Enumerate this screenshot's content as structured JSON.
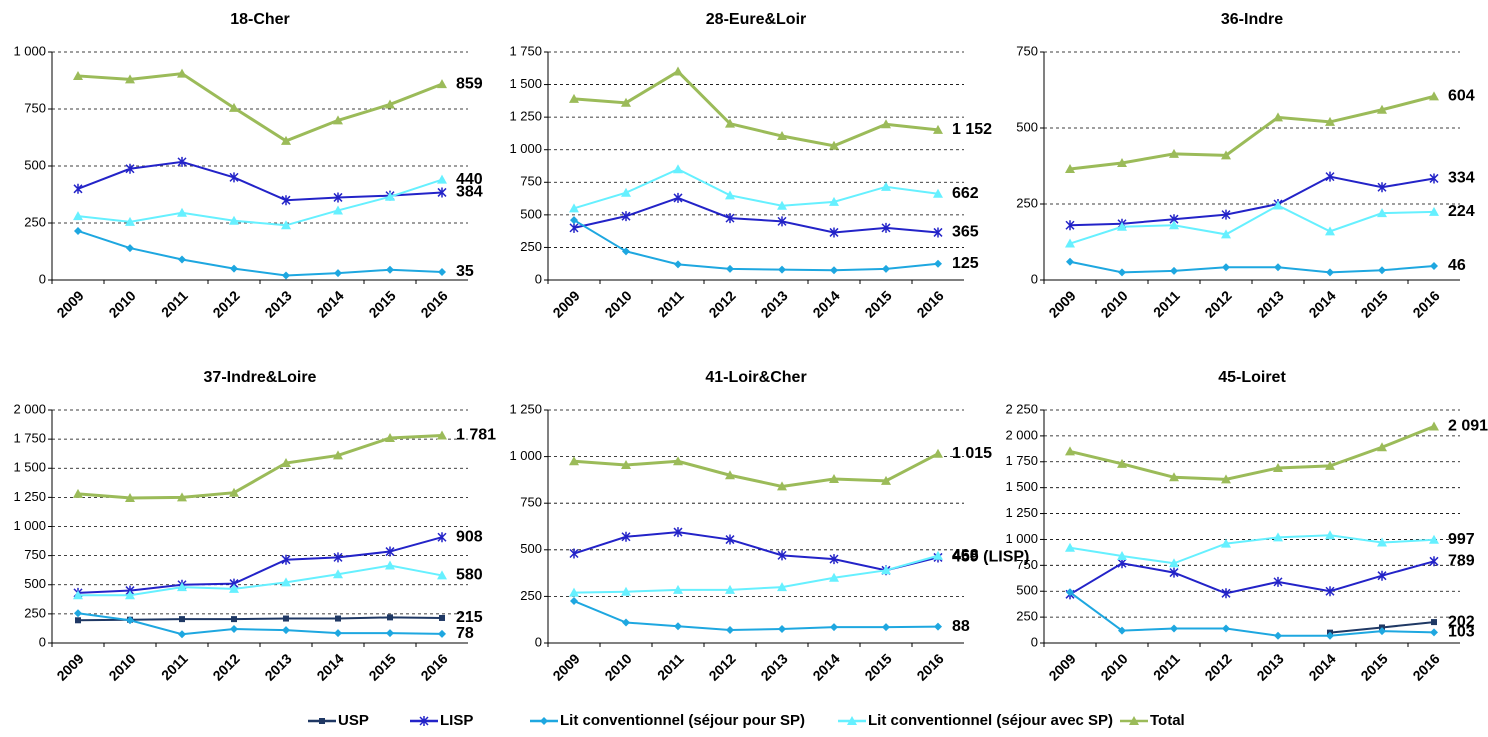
{
  "chart_data": [
    {
      "type": "line",
      "title": "18-Cher",
      "categories": [
        "2009",
        "2010",
        "2011",
        "2012",
        "2013",
        "2014",
        "2015",
        "2016"
      ],
      "ylim": [
        0,
        1000
      ],
      "yticks": [
        0,
        250,
        500,
        750,
        {
          "value": 1000,
          "label": "1 000"
        }
      ],
      "grid": true,
      "series": [
        {
          "name": "USP",
          "color": "#1f3864",
          "marker": "square",
          "values": [
            null,
            null,
            null,
            null,
            null,
            null,
            null,
            null
          ]
        },
        {
          "name": "LISP",
          "color": "#2323c8",
          "marker": "asterisk",
          "values": [
            400,
            488,
            518,
            450,
            350,
            362,
            370,
            384
          ]
        },
        {
          "name": "Lit conventionnel (séjour pour SP)",
          "color": "#1ea7e0",
          "marker": "diamond",
          "values": [
            215,
            140,
            90,
            50,
            20,
            30,
            45,
            35
          ]
        },
        {
          "name": "Lit conventionnel (séjour avec SP)",
          "color": "#66f0ff",
          "marker": "triangle",
          "values": [
            280,
            255,
            295,
            260,
            240,
            305,
            365,
            440
          ]
        },
        {
          "name": "Total",
          "color": "#9bbb59",
          "marker": "triangle",
          "values": [
            895,
            880,
            905,
            755,
            610,
            700,
            770,
            859
          ]
        }
      ]
    },
    {
      "type": "line",
      "title": "28-Eure&Loir",
      "categories": [
        "2009",
        "2010",
        "2011",
        "2012",
        "2013",
        "2014",
        "2015",
        "2016"
      ],
      "ylim": [
        0,
        1750
      ],
      "yticks": [
        0,
        250,
        500,
        750,
        {
          "value": 1000,
          "label": "1 000"
        },
        {
          "value": 1250,
          "label": "1 250"
        },
        {
          "value": 1500,
          "label": "1 500"
        },
        {
          "value": 1750,
          "label": "1 750"
        }
      ],
      "grid": true,
      "series": [
        {
          "name": "USP",
          "color": "#1f3864",
          "marker": "square",
          "values": [
            null,
            null,
            null,
            null,
            null,
            null,
            null,
            null
          ]
        },
        {
          "name": "LISP",
          "color": "#2323c8",
          "marker": "asterisk",
          "values": [
            400,
            490,
            630,
            475,
            450,
            365,
            400,
            365
          ]
        },
        {
          "name": "Lit conventionnel (séjour pour SP)",
          "color": "#1ea7e0",
          "marker": "diamond",
          "values": [
            460,
            220,
            120,
            85,
            80,
            75,
            85,
            125
          ]
        },
        {
          "name": "Lit conventionnel (séjour avec SP)",
          "color": "#66f0ff",
          "marker": "triangle",
          "values": [
            550,
            670,
            850,
            650,
            570,
            600,
            715,
            662
          ]
        },
        {
          "name": "Total",
          "color": "#9bbb59",
          "marker": "triangle",
          "values": [
            1390,
            1360,
            1600,
            1200,
            1105,
            1030,
            1195,
            1152
          ],
          "value_labels": [
            null,
            null,
            null,
            null,
            null,
            null,
            null,
            "1 152"
          ]
        }
      ]
    },
    {
      "type": "line",
      "title": "36-Indre",
      "categories": [
        "2009",
        "2010",
        "2011",
        "2012",
        "2013",
        "2014",
        "2015",
        "2016"
      ],
      "ylim": [
        0,
        750
      ],
      "yticks": [
        0,
        250,
        500,
        750
      ],
      "grid": true,
      "series": [
        {
          "name": "USP",
          "color": "#1f3864",
          "marker": "square",
          "values": [
            null,
            null,
            null,
            null,
            null,
            null,
            null,
            null
          ]
        },
        {
          "name": "LISP",
          "color": "#2323c8",
          "marker": "asterisk",
          "values": [
            180,
            185,
            200,
            215,
            250,
            340,
            305,
            334
          ]
        },
        {
          "name": "Lit conventionnel (séjour pour SP)",
          "color": "#1ea7e0",
          "marker": "diamond",
          "values": [
            60,
            25,
            30,
            42,
            42,
            25,
            32,
            46
          ]
        },
        {
          "name": "Lit conventionnel (séjour avec SP)",
          "color": "#66f0ff",
          "marker": "triangle",
          "values": [
            120,
            175,
            180,
            150,
            245,
            160,
            220,
            224
          ]
        },
        {
          "name": "Total",
          "color": "#9bbb59",
          "marker": "triangle",
          "values": [
            365,
            385,
            415,
            410,
            535,
            520,
            560,
            604
          ]
        }
      ]
    },
    {
      "type": "line",
      "title": "37-Indre&Loire",
      "categories": [
        "2009",
        "2010",
        "2011",
        "2012",
        "2013",
        "2014",
        "2015",
        "2016"
      ],
      "ylim": [
        0,
        2000
      ],
      "yticks": [
        0,
        250,
        500,
        750,
        {
          "value": 1000,
          "label": "1 000"
        },
        {
          "value": 1250,
          "label": "1 250"
        },
        {
          "value": 1500,
          "label": "1 500"
        },
        {
          "value": 1750,
          "label": "1 750"
        },
        {
          "value": 2000,
          "label": "2 000"
        }
      ],
      "grid": true,
      "series": [
        {
          "name": "USP",
          "color": "#1f3864",
          "marker": "square",
          "values": [
            195,
            200,
            205,
            205,
            210,
            210,
            220,
            215
          ]
        },
        {
          "name": "LISP",
          "color": "#2323c8",
          "marker": "asterisk",
          "values": [
            430,
            450,
            500,
            510,
            715,
            735,
            785,
            908
          ]
        },
        {
          "name": "Lit conventionnel (séjour pour SP)",
          "color": "#1ea7e0",
          "marker": "diamond",
          "values": [
            255,
            195,
            75,
            120,
            110,
            85,
            85,
            78
          ]
        },
        {
          "name": "Lit conventionnel (séjour avec SP)",
          "color": "#66f0ff",
          "marker": "triangle",
          "values": [
            410,
            410,
            480,
            465,
            520,
            590,
            665,
            580
          ]
        },
        {
          "name": "Total",
          "color": "#9bbb59",
          "marker": "triangle",
          "values": [
            1280,
            1245,
            1250,
            1290,
            1545,
            1610,
            1760,
            1781
          ],
          "value_labels": [
            null,
            null,
            null,
            null,
            null,
            null,
            null,
            "1 781"
          ]
        }
      ]
    },
    {
      "type": "line",
      "title": "41-Loir&Cher",
      "categories": [
        "2009",
        "2010",
        "2011",
        "2012",
        "2013",
        "2014",
        "2015",
        "2016"
      ],
      "ylim": [
        0,
        1250
      ],
      "yticks": [
        0,
        250,
        500,
        750,
        {
          "value": 1000,
          "label": "1 000"
        },
        {
          "value": 1250,
          "label": "1 250"
        }
      ],
      "grid": true,
      "series": [
        {
          "name": "USP",
          "color": "#1f3864",
          "marker": "square",
          "values": [
            null,
            null,
            null,
            null,
            null,
            null,
            null,
            null
          ]
        },
        {
          "name": "LISP",
          "color": "#2323c8",
          "marker": "asterisk",
          "values": [
            480,
            570,
            595,
            555,
            470,
            450,
            390,
            459
          ],
          "value_labels": [
            null,
            null,
            null,
            null,
            null,
            null,
            null,
            "459 (LISP)"
          ]
        },
        {
          "name": "Lit conventionnel (séjour pour SP)",
          "color": "#1ea7e0",
          "marker": "diamond",
          "values": [
            225,
            110,
            90,
            70,
            75,
            85,
            85,
            88
          ]
        },
        {
          "name": "Lit conventionnel (séjour avec SP)",
          "color": "#66f0ff",
          "marker": "triangle",
          "values": [
            270,
            275,
            285,
            285,
            300,
            350,
            390,
            468
          ]
        },
        {
          "name": "Total",
          "color": "#9bbb59",
          "marker": "triangle",
          "values": [
            975,
            955,
            975,
            900,
            840,
            880,
            870,
            1015
          ],
          "value_labels": [
            null,
            null,
            null,
            null,
            null,
            null,
            null,
            "1 015"
          ]
        }
      ]
    },
    {
      "type": "line",
      "title": "45-Loiret",
      "categories": [
        "2009",
        "2010",
        "2011",
        "2012",
        "2013",
        "2014",
        "2015",
        "2016"
      ],
      "ylim": [
        0,
        2250
      ],
      "yticks": [
        0,
        250,
        500,
        750,
        {
          "value": 1000,
          "label": "1 000"
        },
        {
          "value": 1250,
          "label": "1 250"
        },
        {
          "value": 1500,
          "label": "1 500"
        },
        {
          "value": 1750,
          "label": "1 750"
        },
        {
          "value": 2000,
          "label": "2 000"
        },
        {
          "value": 2250,
          "label": "2 250"
        }
      ],
      "grid": true,
      "series": [
        {
          "name": "USP",
          "color": "#1f3864",
          "marker": "square",
          "values": [
            null,
            null,
            null,
            null,
            null,
            100,
            150,
            202
          ]
        },
        {
          "name": "LISP",
          "color": "#2323c8",
          "marker": "asterisk",
          "values": [
            470,
            770,
            680,
            480,
            590,
            500,
            650,
            789
          ]
        },
        {
          "name": "Lit conventionnel (séjour pour SP)",
          "color": "#1ea7e0",
          "marker": "diamond",
          "values": [
            490,
            120,
            140,
            140,
            70,
            70,
            115,
            103
          ]
        },
        {
          "name": "Lit conventionnel (séjour avec SP)",
          "color": "#66f0ff",
          "marker": "triangle",
          "values": [
            920,
            840,
            770,
            960,
            1020,
            1040,
            970,
            997
          ]
        },
        {
          "name": "Total",
          "color": "#9bbb59",
          "marker": "triangle",
          "values": [
            1850,
            1730,
            1600,
            1580,
            1690,
            1710,
            1890,
            2091
          ],
          "value_labels": [
            null,
            null,
            null,
            null,
            null,
            null,
            null,
            "2 091"
          ]
        }
      ]
    }
  ]
}
